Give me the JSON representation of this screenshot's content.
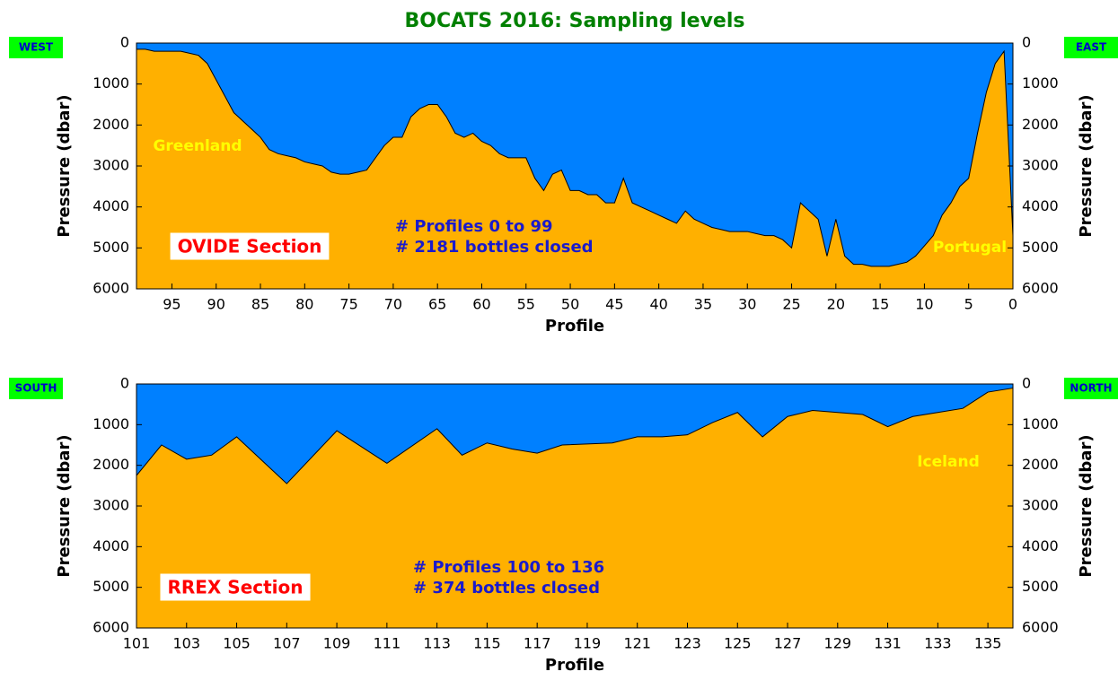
{
  "chart_data": [
    {
      "type": "area",
      "title": "BOCATS 2016: Sampling levels",
      "xlabel": "Profile",
      "ylabel": "Pressure (dbar)",
      "left_label": "WEST",
      "right_label": "EAST",
      "water_color": "#0080ff",
      "land_color": "#ffb000",
      "xlim": [
        99,
        0
      ],
      "xticks": [
        95,
        90,
        85,
        80,
        75,
        70,
        65,
        60,
        55,
        50,
        45,
        40,
        35,
        30,
        25,
        20,
        15,
        10,
        5,
        0
      ],
      "ylim": [
        0,
        6000
      ],
      "y_inverted": true,
      "yticks": [
        0,
        1000,
        2000,
        3000,
        4000,
        5000,
        6000
      ],
      "x": [
        0,
        1,
        2,
        3,
        4,
        5,
        6,
        7,
        8,
        9,
        10,
        11,
        12,
        13,
        14,
        15,
        16,
        17,
        18,
        19,
        20,
        21,
        22,
        23,
        24,
        25,
        26,
        27,
        28,
        29,
        30,
        31,
        32,
        33,
        34,
        35,
        36,
        37,
        38,
        39,
        40,
        41,
        42,
        43,
        44,
        45,
        46,
        47,
        48,
        49,
        50,
        51,
        52,
        53,
        54,
        55,
        56,
        57,
        58,
        59,
        60,
        61,
        62,
        63,
        64,
        65,
        66,
        67,
        68,
        69,
        70,
        71,
        72,
        73,
        74,
        75,
        76,
        77,
        78,
        79,
        80,
        81,
        82,
        83,
        84,
        85,
        86,
        87,
        88,
        89,
        90,
        91,
        92,
        93,
        94,
        95,
        96,
        97,
        98,
        99
      ],
      "values": [
        4700,
        200,
        500,
        1200,
        2200,
        3300,
        3500,
        3900,
        4200,
        4700,
        4950,
        5200,
        5350,
        5400,
        5450,
        5450,
        5450,
        5400,
        5400,
        5200,
        4300,
        5200,
        4300,
        4100,
        3900,
        5000,
        4800,
        4700,
        4700,
        4650,
        4600,
        4600,
        4600,
        4550,
        4500,
        4400,
        4300,
        4100,
        4400,
        4300,
        4200,
        4100,
        4000,
        3900,
        3300,
        3900,
        3900,
        3700,
        3700,
        3600,
        3600,
        3100,
        3200,
        3600,
        3300,
        2800,
        2800,
        2800,
        2700,
        2500,
        2400,
        2200,
        2300,
        2200,
        1800,
        1500,
        1500,
        1600,
        1800,
        2300,
        2300,
        2500,
        2800,
        3100,
        3150,
        3200,
        3200,
        3150,
        3000,
        2950,
        2900,
        2800,
        2750,
        2700,
        2600,
        2300,
        2100,
        1900,
        1700,
        1300,
        900,
        500,
        300,
        250,
        200,
        200,
        200,
        200,
        150,
        150
      ],
      "annotations": [
        {
          "text": "Greenland",
          "kind": "place"
        },
        {
          "text": "Portugal",
          "kind": "place"
        },
        {
          "text": "OVIDE Section",
          "kind": "section"
        },
        {
          "text": "# Profiles 0 to 99",
          "kind": "stat"
        },
        {
          "text": "# 2181 bottles closed",
          "kind": "stat"
        }
      ]
    },
    {
      "type": "area",
      "xlabel": "Profile",
      "ylabel": "Pressure (dbar)",
      "left_label": "SOUTH",
      "right_label": "NORTH",
      "water_color": "#0080ff",
      "land_color": "#ffb000",
      "xlim": [
        101,
        136
      ],
      "xticks": [
        101,
        103,
        105,
        107,
        109,
        111,
        113,
        115,
        117,
        119,
        121,
        123,
        125,
        127,
        129,
        131,
        133,
        135
      ],
      "ylim": [
        0,
        6000
      ],
      "y_inverted": true,
      "yticks": [
        0,
        1000,
        2000,
        3000,
        4000,
        5000,
        6000
      ],
      "x": [
        101,
        102,
        103,
        104,
        105,
        107,
        109,
        111,
        113,
        114,
        115,
        116,
        117,
        118,
        120,
        121,
        122,
        123,
        124,
        125,
        126,
        127,
        128,
        129,
        130,
        131,
        132,
        133,
        134,
        135,
        136
      ],
      "values": [
        2250,
        1500,
        1850,
        1750,
        1300,
        2450,
        1150,
        1950,
        1100,
        1750,
        1450,
        1600,
        1700,
        1500,
        1450,
        1300,
        1300,
        1250,
        950,
        700,
        1300,
        800,
        650,
        700,
        750,
        1050,
        800,
        700,
        600,
        200,
        100
      ],
      "annotations": [
        {
          "text": "Iceland",
          "kind": "place"
        },
        {
          "text": "RREX Section",
          "kind": "section"
        },
        {
          "text": "# Profiles 100 to 136",
          "kind": "stat"
        },
        {
          "text": "# 374 bottles closed",
          "kind": "stat"
        }
      ]
    }
  ]
}
